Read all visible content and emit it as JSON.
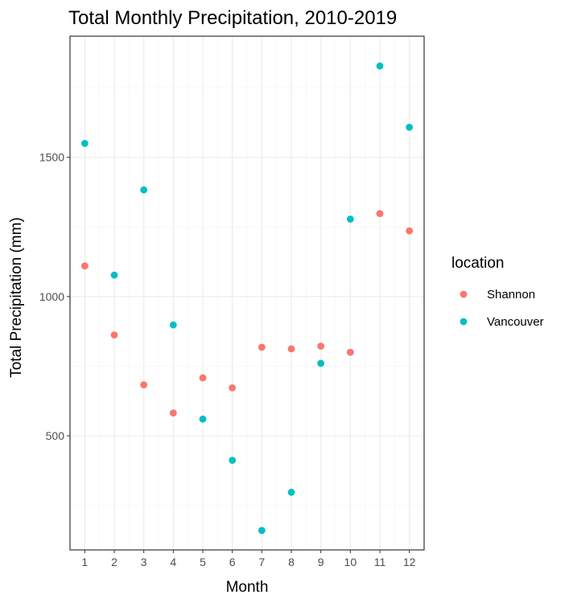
{
  "chart_data": {
    "type": "scatter",
    "title": "Total Monthly Precipitation, 2010-2019",
    "xlabel": "Month",
    "ylabel": "Total Precipitation (mm)",
    "x_ticks": [
      "1",
      "2",
      "3",
      "4",
      "5",
      "6",
      "7",
      "8",
      "9",
      "10",
      "11",
      "12"
    ],
    "y_ticks": [
      500,
      1000,
      1500
    ],
    "xlim": [
      0.5,
      12.5
    ],
    "ylim": [
      90,
      1935
    ],
    "grid": true,
    "legend": {
      "title": "location",
      "position": "right"
    },
    "series": [
      {
        "name": "Shannon",
        "color": "#F8766D",
        "x": [
          1,
          2,
          3,
          4,
          5,
          6,
          7,
          8,
          9,
          10,
          11,
          12
        ],
        "y": [
          1110,
          862,
          683,
          582,
          708,
          672,
          818,
          812,
          822,
          800,
          1298,
          1236
        ]
      },
      {
        "name": "Vancouver",
        "color": "#00BFC4",
        "x": [
          1,
          2,
          3,
          4,
          5,
          6,
          7,
          8,
          9,
          10,
          11,
          12
        ],
        "y": [
          1550,
          1077,
          1383,
          898,
          560,
          412,
          160,
          297,
          760,
          1278,
          1828,
          1608
        ]
      }
    ]
  }
}
